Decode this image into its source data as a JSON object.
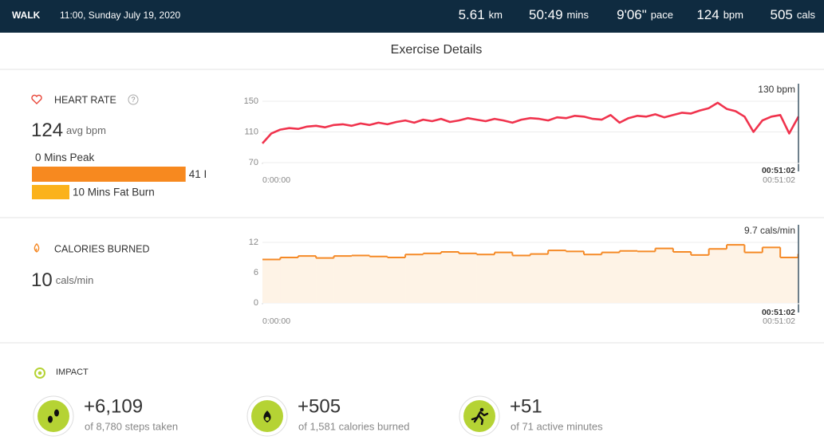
{
  "header": {
    "activity": "WALK",
    "datetime": "11:00, Sunday July 19, 2020",
    "stats": [
      {
        "value": "5.61",
        "unit": "km"
      },
      {
        "value": "50:49",
        "unit": "mins"
      },
      {
        "value": "9'06\"",
        "unit": "pace"
      },
      {
        "value": "124",
        "unit": "bpm"
      },
      {
        "value": "505",
        "unit": "cals"
      }
    ]
  },
  "title": "Exercise Details",
  "heart_rate": {
    "label": "HEART RATE",
    "avg": "124",
    "avg_unit": "avg bpm",
    "zones": [
      {
        "label": "0 Mins Peak",
        "minutes": 0,
        "color": "#e8473a"
      },
      {
        "label": "41 I",
        "minutes": 41,
        "color": "#f7891f"
      },
      {
        "label": "10 Mins Fat Burn",
        "minutes": 10,
        "color": "#fbb21b"
      }
    ]
  },
  "calories": {
    "label": "CALORIES BURNED",
    "value": "10",
    "unit": "cals/min"
  },
  "chart_data": [
    {
      "type": "line",
      "cursor_label": "130 bpm",
      "cursor_time": "00:51:02",
      "color": "#f0334d",
      "x": [
        0,
        51,
        102,
        153,
        204,
        255,
        306,
        357,
        408,
        459,
        510,
        561,
        612,
        663,
        714,
        765,
        816,
        867,
        918,
        969,
        1020,
        1071,
        1122,
        1173,
        1224,
        1275,
        1326,
        1377,
        1428,
        1479,
        1530,
        1581,
        1632,
        1683,
        1734,
        1785,
        1836,
        1887,
        1938,
        1989,
        2040,
        2091,
        2142,
        2193,
        2244,
        2295,
        2346,
        2397,
        2448,
        2499,
        2550,
        2601,
        2652,
        2703,
        2754,
        2805,
        2856,
        2907,
        2958,
        3009,
        3062
      ],
      "values": [
        95,
        108,
        113,
        115,
        114,
        117,
        118,
        116,
        119,
        120,
        118,
        121,
        119,
        122,
        120,
        123,
        125,
        122,
        126,
        124,
        127,
        123,
        125,
        128,
        126,
        124,
        127,
        125,
        122,
        126,
        128,
        127,
        125,
        129,
        128,
        131,
        130,
        127,
        126,
        132,
        122,
        128,
        131,
        130,
        133,
        129,
        132,
        135,
        134,
        138,
        141,
        148,
        140,
        137,
        130,
        110,
        125,
        130,
        132,
        108,
        130
      ],
      "xlim": [
        0,
        3062
      ],
      "xticks": [
        {
          "value": 0,
          "label": "0:00:00"
        },
        {
          "value": 3062,
          "label": "00:51:02"
        }
      ],
      "ylim": [
        70,
        150
      ],
      "yticks": [
        70,
        110,
        150
      ],
      "grid": true
    },
    {
      "type": "step_area",
      "cursor_label": "9.7 cals/min",
      "cursor_time": "00:51:02",
      "color": "#f58a27",
      "fill": "#fef3e6",
      "x": [
        0,
        102,
        204,
        306,
        408,
        510,
        612,
        714,
        816,
        918,
        1020,
        1122,
        1224,
        1326,
        1428,
        1530,
        1632,
        1734,
        1836,
        1938,
        2040,
        2142,
        2244,
        2346,
        2448,
        2550,
        2652,
        2754,
        2856,
        2958,
        3060
      ],
      "values": [
        8.6,
        9.0,
        9.3,
        8.9,
        9.3,
        9.4,
        9.2,
        9.0,
        9.6,
        9.8,
        10.1,
        9.8,
        9.6,
        10.0,
        9.4,
        9.7,
        10.4,
        10.2,
        9.6,
        10.0,
        10.3,
        10.2,
        10.8,
        10.1,
        9.5,
        10.7,
        11.5,
        10.0,
        11.0,
        9.0,
        9.7
      ],
      "xlim": [
        0,
        3062
      ],
      "xticks": [
        {
          "value": 0,
          "label": "0:00:00"
        },
        {
          "value": 3062,
          "label": "00:51:02"
        }
      ],
      "ylim": [
        0,
        12
      ],
      "yticks": [
        0,
        6,
        12
      ],
      "grid": true
    }
  ],
  "impact": {
    "label": "IMPACT",
    "items": [
      {
        "value": "+6,109",
        "detail": "of 8,780 steps taken"
      },
      {
        "value": "+505",
        "detail": "of 1,581 calories burned"
      },
      {
        "value": "+51",
        "detail": "of 71 active minutes"
      }
    ]
  }
}
